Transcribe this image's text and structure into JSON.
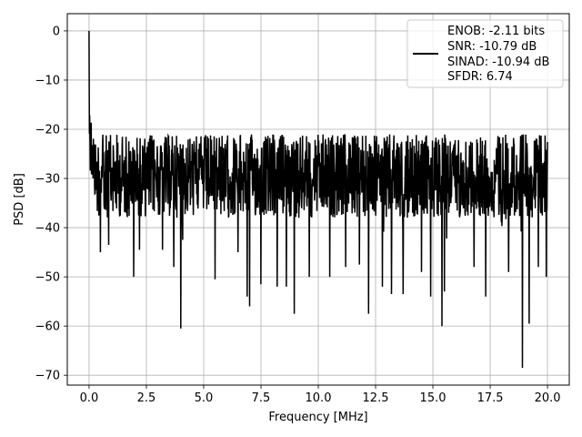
{
  "chart_data": {
    "type": "line",
    "title": "",
    "xlabel": "Frequency [MHz]",
    "ylabel": "PSD [dB]",
    "xlim": [
      -0.95,
      20.95
    ],
    "ylim": [
      -72,
      3.5
    ],
    "xticks": [
      0.0,
      2.5,
      5.0,
      7.5,
      10.0,
      12.5,
      15.0,
      17.5,
      20.0
    ],
    "xtick_labels": [
      "0.0",
      "2.5",
      "5.0",
      "7.5",
      "10.0",
      "12.5",
      "15.0",
      "17.5",
      "20.0"
    ],
    "yticks": [
      0,
      -10,
      -20,
      -30,
      -40,
      -50,
      -60,
      -70
    ],
    "ytick_labels": [
      "0",
      "−10",
      "−20",
      "−30",
      "−40",
      "−50",
      "−60",
      "−70"
    ],
    "grid": true,
    "legend_position": "upper-right",
    "legend_lines": [
      "ENOB: -2.11 bits",
      "SNR: -10.79 dB",
      "SINAD: -10.94 dB",
      "SFDR: 6.74"
    ],
    "series": [
      {
        "color": "#000000",
        "x_range": [
          0.0,
          20.0
        ],
        "noise_upper_db": -21,
        "noise_lower_db": -38,
        "noise_floor_typical_db": -30,
        "peak": {
          "x": 0.0,
          "y": 0.0
        },
        "dips": [
          {
            "x": 0.5,
            "y": -45
          },
          {
            "x": 0.85,
            "y": -43.5
          },
          {
            "x": 1.95,
            "y": -50
          },
          {
            "x": 2.2,
            "y": -44.5
          },
          {
            "x": 3.2,
            "y": -44.5
          },
          {
            "x": 3.7,
            "y": -48
          },
          {
            "x": 4.0,
            "y": -60.5
          },
          {
            "x": 5.5,
            "y": -50.5
          },
          {
            "x": 6.5,
            "y": -45
          },
          {
            "x": 6.9,
            "y": -54
          },
          {
            "x": 7.0,
            "y": -56
          },
          {
            "x": 7.5,
            "y": -51.5
          },
          {
            "x": 8.2,
            "y": -52
          },
          {
            "x": 8.6,
            "y": -52
          },
          {
            "x": 8.95,
            "y": -57.5
          },
          {
            "x": 9.6,
            "y": -50
          },
          {
            "x": 10.5,
            "y": -50
          },
          {
            "x": 11.2,
            "y": -48
          },
          {
            "x": 11.8,
            "y": -47.5
          },
          {
            "x": 12.2,
            "y": -57.5
          },
          {
            "x": 12.8,
            "y": -52
          },
          {
            "x": 13.2,
            "y": -53.5
          },
          {
            "x": 13.7,
            "y": -53.5
          },
          {
            "x": 14.5,
            "y": -49
          },
          {
            "x": 14.9,
            "y": -54
          },
          {
            "x": 15.5,
            "y": -53
          },
          {
            "x": 15.4,
            "y": -60
          },
          {
            "x": 16.8,
            "y": -48
          },
          {
            "x": 17.3,
            "y": -54
          },
          {
            "x": 18.3,
            "y": -49
          },
          {
            "x": 18.9,
            "y": -68.5
          },
          {
            "x": 19.2,
            "y": -59.5
          },
          {
            "x": 19.6,
            "y": -48
          },
          {
            "x": 19.95,
            "y": -50
          }
        ]
      }
    ]
  }
}
